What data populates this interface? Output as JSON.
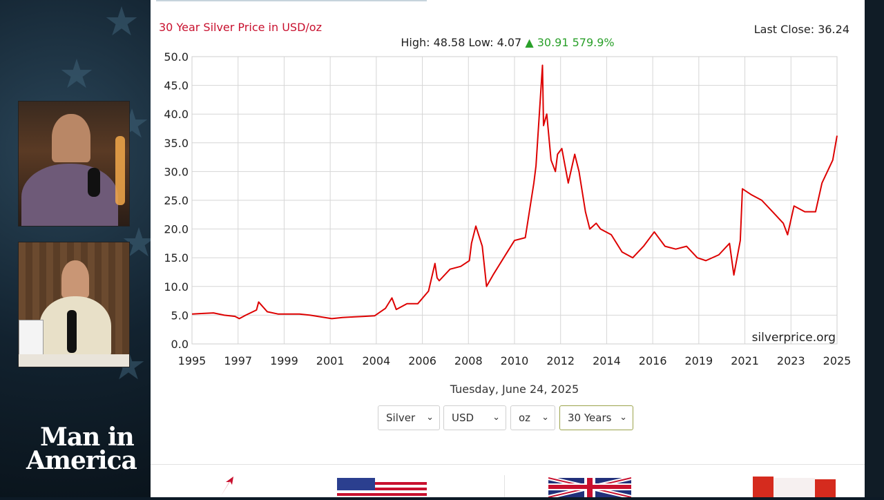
{
  "header": {
    "title": "30 Year Silver Price in USD/oz",
    "last_close": "Last Close: 36.24",
    "stats_prefix": "High: 48.58 Low: 4.07",
    "change_arrow": "▲",
    "change": "30.91 579.9%"
  },
  "colors": {
    "line": "#dd0000",
    "title": "#c8102e",
    "up": "#2aa02a"
  },
  "chart_data": {
    "type": "line",
    "title": "30 Year Silver Price in USD/oz",
    "xlabel": "",
    "ylabel": "",
    "xlim": [
      1995,
      2025
    ],
    "ylim": [
      0,
      50
    ],
    "grid": true,
    "legend": "none",
    "x_ticks": [
      "1995",
      "1997",
      "1999",
      "2001",
      "2004",
      "2006",
      "2008",
      "2010",
      "2012",
      "2014",
      "2016",
      "2019",
      "2021",
      "2023",
      "2025"
    ],
    "y_ticks": [
      "0.0",
      "5.0",
      "10.0",
      "15.0",
      "20.0",
      "25.0",
      "30.0",
      "35.0",
      "40.0",
      "45.0",
      "50.0"
    ],
    "watermark": "silverprice.org",
    "series": [
      {
        "x": [
          1995.0,
          1995.5,
          1996.0,
          1996.5,
          1997.0,
          1997.2,
          1997.5,
          1998.0,
          1998.1,
          1998.5,
          1999.0,
          1999.5,
          2000.0,
          2000.5,
          2001.0,
          2001.5,
          2002.0,
          2002.5,
          2003.0,
          2003.5,
          2004.0,
          2004.3,
          2004.5,
          2005.0,
          2005.5,
          2006.0,
          2006.3,
          2006.4,
          2006.5,
          2007.0,
          2007.5,
          2007.9,
          2008.0,
          2008.2,
          2008.5,
          2008.7,
          2009.0,
          2009.5,
          2010.0,
          2010.5,
          2010.9,
          2011.0,
          2011.3,
          2011.35,
          2011.5,
          2011.7,
          2011.9,
          2012.0,
          2012.2,
          2012.5,
          2012.8,
          2013.0,
          2013.3,
          2013.5,
          2013.8,
          2014.0,
          2014.5,
          2015.0,
          2015.5,
          2016.0,
          2016.5,
          2017.0,
          2017.5,
          2018.0,
          2018.5,
          2018.9,
          2019.5,
          2020.0,
          2020.2,
          2020.5,
          2020.6,
          2021.0,
          2021.5,
          2022.0,
          2022.5,
          2022.7,
          2023.0,
          2023.5,
          2024.0,
          2024.3,
          2024.8,
          2025.0
        ],
        "y": [
          5.2,
          5.3,
          5.4,
          5.0,
          4.8,
          4.4,
          5.0,
          5.9,
          7.3,
          5.6,
          5.2,
          5.2,
          5.2,
          5.0,
          4.7,
          4.4,
          4.6,
          4.7,
          4.8,
          4.9,
          6.2,
          8.0,
          6.0,
          7.0,
          7.0,
          9.2,
          14.0,
          11.5,
          11.0,
          13.0,
          13.5,
          14.5,
          17.5,
          20.5,
          17.0,
          10.0,
          12.0,
          15.0,
          18.0,
          18.5,
          28.0,
          31.0,
          48.5,
          38.0,
          40.0,
          32.0,
          30.0,
          33.0,
          34.0,
          28.0,
          33.0,
          30.0,
          23.0,
          20.0,
          21.0,
          20.0,
          19.0,
          16.0,
          15.0,
          17.0,
          19.5,
          17.0,
          16.5,
          17.0,
          15.0,
          14.5,
          15.5,
          17.5,
          12.0,
          18.0,
          27.0,
          26.0,
          25.0,
          23.0,
          21.0,
          19.0,
          24.0,
          23.0,
          23.0,
          28.0,
          32.0,
          36.24
        ]
      }
    ]
  },
  "footer": {
    "date": "Tuesday, June 24, 2025"
  },
  "controls": {
    "metal": "Silver",
    "currency": "USD",
    "unit": "oz",
    "period": "30 Years"
  },
  "branding": {
    "logo_line1": "Man in",
    "logo_line2": "America"
  }
}
